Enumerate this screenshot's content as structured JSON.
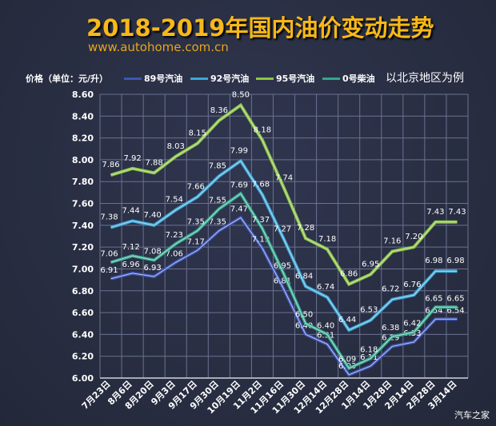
{
  "title": "2018-2019年国内油价变动走势",
  "url": "www.autohome.com.cn",
  "note": "以北京地区为例",
  "watermark": "汽车之家",
  "chart_data": {
    "type": "line",
    "title": "2018-2019年国内油价变动走势",
    "ylabel": "价格（单位：元/升）",
    "ylim": [
      6.0,
      8.6
    ],
    "yticks": [
      "6.00",
      "6.20",
      "6.40",
      "6.60",
      "6.80",
      "7.00",
      "7.20",
      "7.40",
      "7.60",
      "7.80",
      "8.00",
      "8.20",
      "8.40",
      "8.60"
    ],
    "grid": true,
    "legend": "top",
    "categories": [
      "7月23日",
      "8月6日",
      "8月20日",
      "9月3日",
      "9月17日",
      "9月30日",
      "10月19日",
      "11月2日",
      "11月16日",
      "11月30日",
      "12月14日",
      "12月28日",
      "1月14日",
      "1月28日",
      "2月14日",
      "2月28日",
      "3月14日"
    ],
    "series": [
      {
        "name": "89号汽油",
        "color": "#3d55b8",
        "values": [
          6.91,
          6.96,
          6.93,
          7.06,
          7.17,
          7.35,
          7.47,
          7.19,
          6.81,
          6.4,
          6.31,
          6.03,
          6.11,
          6.29,
          6.33,
          6.54,
          6.54
        ]
      },
      {
        "name": "92号汽油",
        "color": "#3aa8d8",
        "values": [
          7.38,
          7.44,
          7.4,
          7.54,
          7.66,
          7.85,
          7.99,
          7.68,
          7.27,
          6.84,
          6.74,
          6.44,
          6.53,
          6.72,
          6.76,
          6.98,
          6.98
        ]
      },
      {
        "name": "95号汽油",
        "color": "#8cc63e",
        "values": [
          7.86,
          7.92,
          7.88,
          8.03,
          8.15,
          8.36,
          8.5,
          8.18,
          7.74,
          7.28,
          7.18,
          6.86,
          6.95,
          7.16,
          7.2,
          7.43,
          7.43
        ]
      },
      {
        "name": "0号柴油",
        "color": "#2fa88a",
        "values": [
          7.06,
          7.12,
          7.08,
          7.23,
          7.35,
          7.55,
          7.69,
          7.37,
          6.95,
          6.5,
          6.4,
          6.09,
          6.18,
          6.38,
          6.42,
          6.65,
          6.65
        ]
      }
    ]
  }
}
